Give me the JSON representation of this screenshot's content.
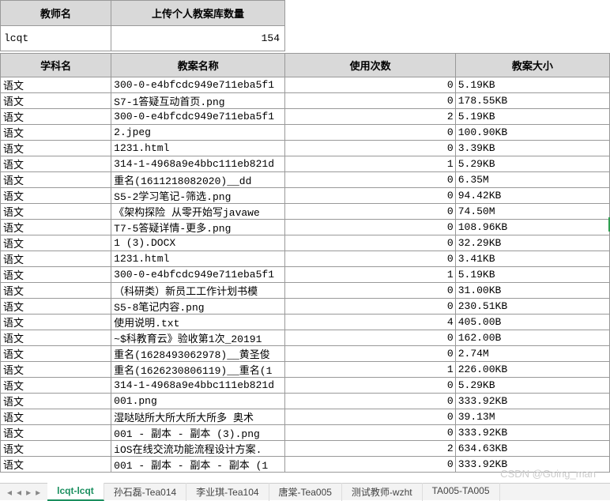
{
  "summary": {
    "headers": {
      "teacher": "教师名",
      "count": "上传个人教案库数量"
    },
    "teacher": "lcqt",
    "count": "154"
  },
  "table": {
    "headers": {
      "subject": "学科名",
      "name": "教案名称",
      "uses": "使用次数",
      "size": "教案大小"
    },
    "rows": [
      {
        "s": "语文",
        "n": "300-0-e4bfcdc949e711eba5f1",
        "u": "0",
        "z": "5.19KB"
      },
      {
        "s": "语文",
        "n": "S7-1答疑互动首页.png",
        "u": "0",
        "z": "178.55KB"
      },
      {
        "s": "语文",
        "n": "300-0-e4bfcdc949e711eba5f1",
        "u": "2",
        "z": "5.19KB"
      },
      {
        "s": "语文",
        "n": "2.jpeg",
        "u": "0",
        "z": "100.90KB"
      },
      {
        "s": "语文",
        "n": "1231.html",
        "u": "0",
        "z": "3.39KB"
      },
      {
        "s": "语文",
        "n": "314-1-4968a9e4bbc111eb821d",
        "u": "1",
        "z": "5.29KB"
      },
      {
        "s": "语文",
        "n": "重名(1611218082020)__dd",
        "u": "0",
        "z": "6.35M"
      },
      {
        "s": "语文",
        "n": "S5-2学习笔记-筛选.png",
        "u": "0",
        "z": "94.42KB"
      },
      {
        "s": "语文",
        "n": "《架构探险 从零开始写javawe",
        "u": "0",
        "z": "74.50M"
      },
      {
        "s": "语文",
        "n": "T7-5答疑详情-更多.png",
        "u": "0",
        "z": "108.96KB"
      },
      {
        "s": "语文",
        "n": "1 (3).DOCX",
        "u": "0",
        "z": "32.29KB"
      },
      {
        "s": "语文",
        "n": "1231.html",
        "u": "0",
        "z": "3.41KB"
      },
      {
        "s": "语文",
        "n": "300-0-e4bfcdc949e711eba5f1",
        "u": "1",
        "z": "5.19KB"
      },
      {
        "s": "语文",
        "n": "（科研类）新员工工作计划书模",
        "u": "0",
        "z": "31.00KB"
      },
      {
        "s": "语文",
        "n": "S5-8笔记内容.png",
        "u": "0",
        "z": "230.51KB"
      },
      {
        "s": "语文",
        "n": "使用说明.txt",
        "u": "4",
        "z": "405.00B"
      },
      {
        "s": "语文",
        "n": "~$科教育云》验收第1次_20191",
        "u": "0",
        "z": "162.00B"
      },
      {
        "s": "语文",
        "n": "重名(1628493062978)__黄圣俊",
        "u": "0",
        "z": "2.74M"
      },
      {
        "s": "语文",
        "n": "重名(1626230806119)__重名(1",
        "u": "1",
        "z": "226.00KB"
      },
      {
        "s": "语文",
        "n": "314-1-4968a9e4bbc111eb821d",
        "u": "0",
        "z": "5.29KB"
      },
      {
        "s": "语文",
        "n": "001.png",
        "u": "0",
        "z": "333.92KB"
      },
      {
        "s": "语文",
        "n": "湿哒哒所大所大所大所多 奥术",
        "u": "0",
        "z": "39.13M"
      },
      {
        "s": "语文",
        "n": "001 - 副本 - 副本 (3).png",
        "u": "0",
        "z": "333.92KB"
      },
      {
        "s": "语文",
        "n": "iOS在线交流功能流程设计方案.",
        "u": "2",
        "z": "634.63KB"
      },
      {
        "s": "语文",
        "n": "001 - 副本 - 副本 - 副本 (1",
        "u": "0",
        "z": "333.92KB"
      }
    ]
  },
  "tabs": {
    "active": "lcqt-lcqt",
    "items": [
      "lcqt-lcqt",
      "孙石磊-Tea014",
      "李业琪-Tea104",
      "唐棠-Tea005",
      "测试教师-wzht",
      "TA005-TA005"
    ]
  },
  "watermark": "CSDN @Going_man"
}
